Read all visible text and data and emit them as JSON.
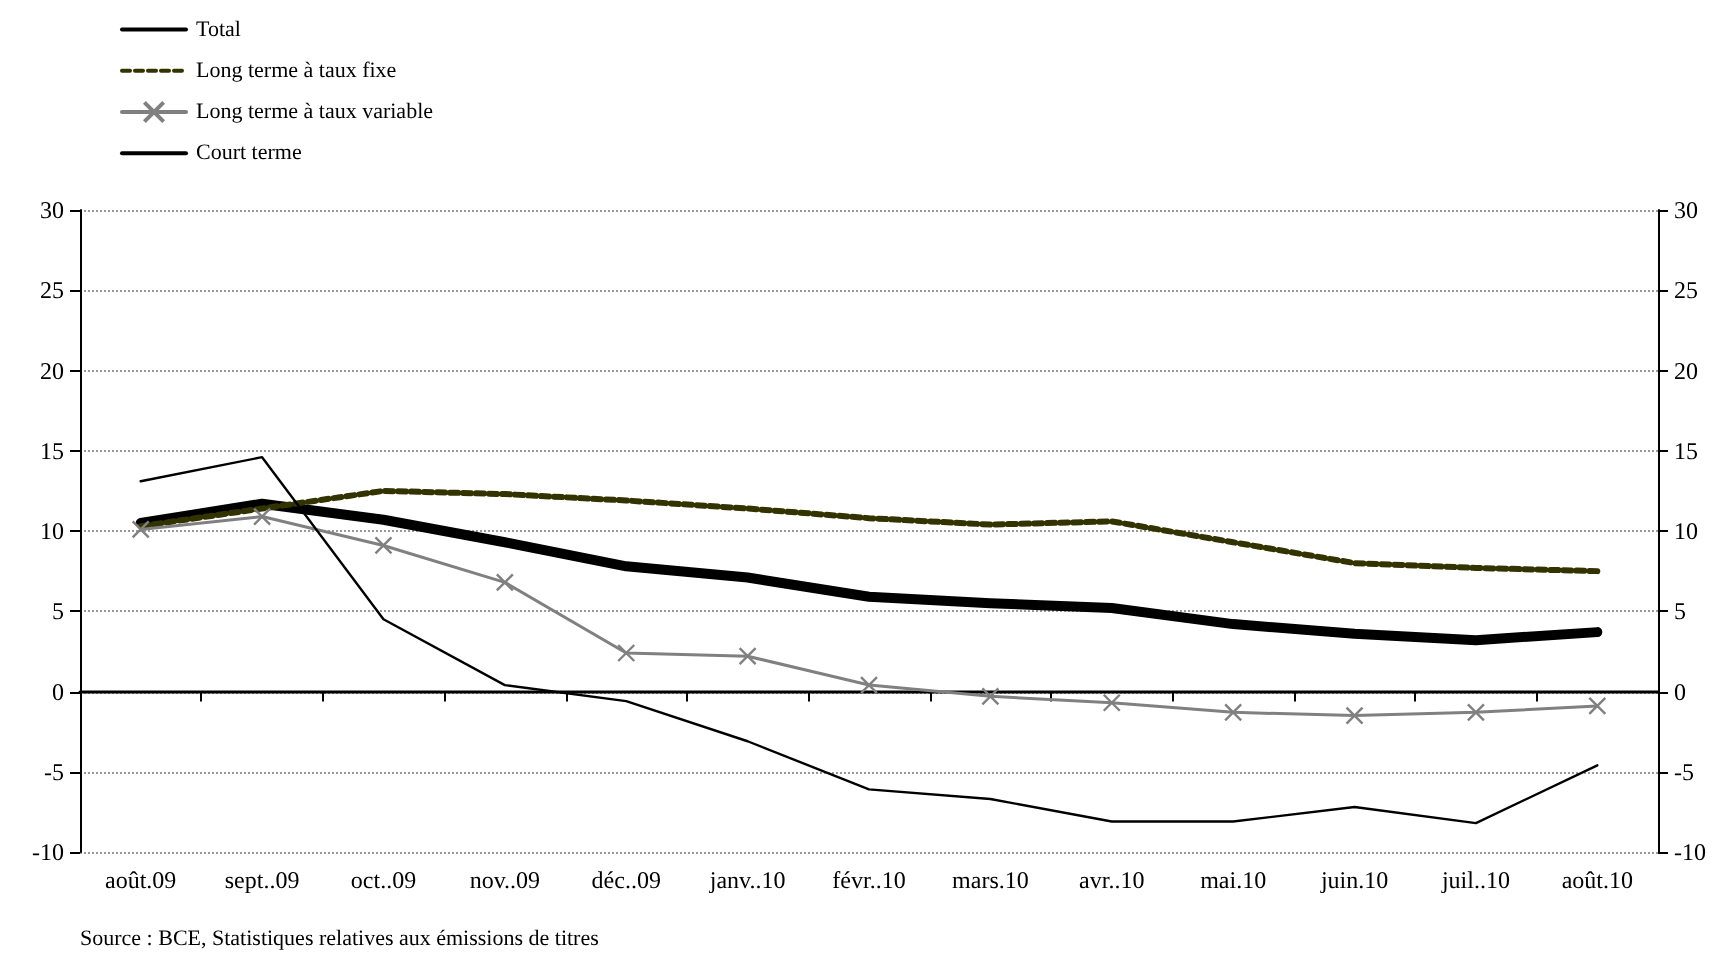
{
  "chart_data": {
    "type": "line",
    "categories": [
      "août.09",
      "sept..09",
      "oct..09",
      "nov..09",
      "déc..09",
      "janv..10",
      "févr..10",
      "mars.10",
      "avr..10",
      "mai.10",
      "juin.10",
      "juil..10",
      "août.10"
    ],
    "series": [
      {
        "name": "Total",
        "color": "#000000",
        "line_style": "solid",
        "marker": "none",
        "values": [
          10.5,
          11.7,
          10.7,
          9.3,
          7.8,
          7.1,
          5.9,
          5.5,
          5.2,
          4.2,
          3.6,
          3.2,
          3.7
        ]
      },
      {
        "name": "Long terme à taux fixe",
        "color": "#333300",
        "line_style": "dashed",
        "marker": "none",
        "values": [
          10.3,
          11.4,
          12.5,
          12.3,
          11.9,
          11.4,
          10.8,
          10.4,
          10.6,
          9.3,
          8.0,
          7.7,
          7.5
        ]
      },
      {
        "name": "Long terme à taux variable",
        "color": "#808080",
        "line_style": "solid",
        "marker": "cross",
        "values": [
          10.1,
          10.9,
          9.1,
          6.8,
          2.4,
          2.2,
          0.4,
          -0.3,
          -0.7,
          -1.3,
          -1.5,
          -1.3,
          -0.9
        ]
      },
      {
        "name": "Court terme",
        "color": "#000000",
        "line_style": "solid",
        "marker": "none",
        "values": [
          13.1,
          14.6,
          4.5,
          0.4,
          -0.6,
          -3.1,
          -6.1,
          -6.7,
          -8.1,
          -8.1,
          -7.2,
          -8.2,
          -4.6
        ]
      }
    ],
    "ylim": [
      -10,
      30
    ],
    "yticks": [
      -10,
      -5,
      0,
      5,
      10,
      15,
      20,
      25,
      30
    ],
    "y2lim": [
      -10,
      30
    ],
    "y2ticks": [
      -10,
      -5,
      0,
      5,
      10,
      15,
      20,
      25,
      30
    ],
    "grid": "y",
    "legend": "top left",
    "annotations": [
      "Source : BCE, Statistiques relatives aux émissions de titres"
    ]
  }
}
